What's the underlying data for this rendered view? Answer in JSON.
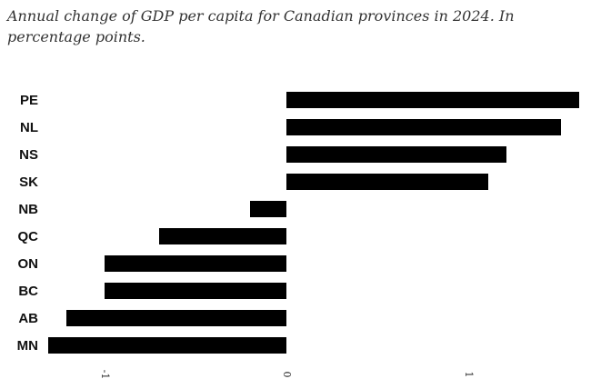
{
  "chart_data": {
    "type": "bar",
    "orientation": "horizontal",
    "title": "Annual change of GDP per capita for Canadian provinces in 2024. In percentage points.",
    "categories": [
      "PE",
      "NL",
      "NS",
      "SK",
      "NB",
      "QC",
      "ON",
      "BC",
      "AB",
      "MN"
    ],
    "values": [
      1.61,
      1.51,
      1.21,
      1.11,
      -0.2,
      -0.7,
      -1.0,
      -1.0,
      -1.21,
      -1.31
    ],
    "xticks": [
      "-1",
      "0",
      "1"
    ],
    "xlim": [
      -1.5,
      1.7
    ],
    "grid": false,
    "legend": "none",
    "bar_color": "#000000"
  }
}
